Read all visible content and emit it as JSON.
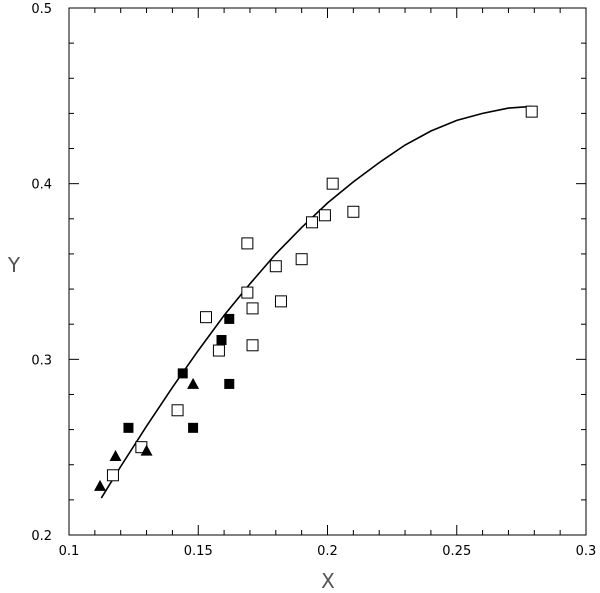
{
  "chart_data": {
    "type": "scatter",
    "xlabel": "X",
    "ylabel": "Y",
    "xlim": [
      0.1,
      0.3
    ],
    "ylim": [
      0.2,
      0.5
    ],
    "xticks": [
      "0.1",
      "0.15",
      "0.2",
      "0.25",
      "0.3"
    ],
    "yticks": [
      "0.2",
      "0.3",
      "0.4",
      "0.5"
    ],
    "xtick_values": [
      0.1,
      0.15,
      0.2,
      0.25,
      0.3
    ],
    "ytick_values": [
      0.2,
      0.3,
      0.4,
      0.5
    ],
    "grid": false,
    "series": [
      {
        "marker": "open-square",
        "points": [
          [
            0.117,
            0.234
          ],
          [
            0.128,
            0.25
          ],
          [
            0.142,
            0.271
          ],
          [
            0.153,
            0.324
          ],
          [
            0.158,
            0.305
          ],
          [
            0.169,
            0.366
          ],
          [
            0.169,
            0.338
          ],
          [
            0.171,
            0.329
          ],
          [
            0.171,
            0.308
          ],
          [
            0.18,
            0.353
          ],
          [
            0.182,
            0.333
          ],
          [
            0.19,
            0.357
          ],
          [
            0.194,
            0.378
          ],
          [
            0.199,
            0.382
          ],
          [
            0.202,
            0.4
          ],
          [
            0.21,
            0.384
          ],
          [
            0.279,
            0.441
          ]
        ]
      },
      {
        "marker": "filled-square",
        "points": [
          [
            0.123,
            0.261
          ],
          [
            0.144,
            0.292
          ],
          [
            0.148,
            0.261
          ],
          [
            0.159,
            0.311
          ],
          [
            0.162,
            0.286
          ],
          [
            0.162,
            0.323
          ]
        ]
      },
      {
        "marker": "filled-triangle",
        "points": [
          [
            0.112,
            0.228
          ],
          [
            0.118,
            0.245
          ],
          [
            0.13,
            0.248
          ],
          [
            0.148,
            0.286
          ]
        ]
      }
    ],
    "fit_curve": {
      "style": "solid-line",
      "points": [
        [
          0.1125,
          0.221
        ],
        [
          0.12,
          0.239
        ],
        [
          0.13,
          0.262
        ],
        [
          0.14,
          0.284
        ],
        [
          0.15,
          0.305
        ],
        [
          0.16,
          0.325
        ],
        [
          0.17,
          0.343
        ],
        [
          0.18,
          0.36
        ],
        [
          0.19,
          0.375
        ],
        [
          0.2,
          0.389
        ],
        [
          0.21,
          0.401
        ],
        [
          0.22,
          0.412
        ],
        [
          0.23,
          0.422
        ],
        [
          0.24,
          0.43
        ],
        [
          0.25,
          0.436
        ],
        [
          0.26,
          0.44
        ],
        [
          0.27,
          0.443
        ],
        [
          0.279,
          0.444
        ]
      ]
    }
  }
}
